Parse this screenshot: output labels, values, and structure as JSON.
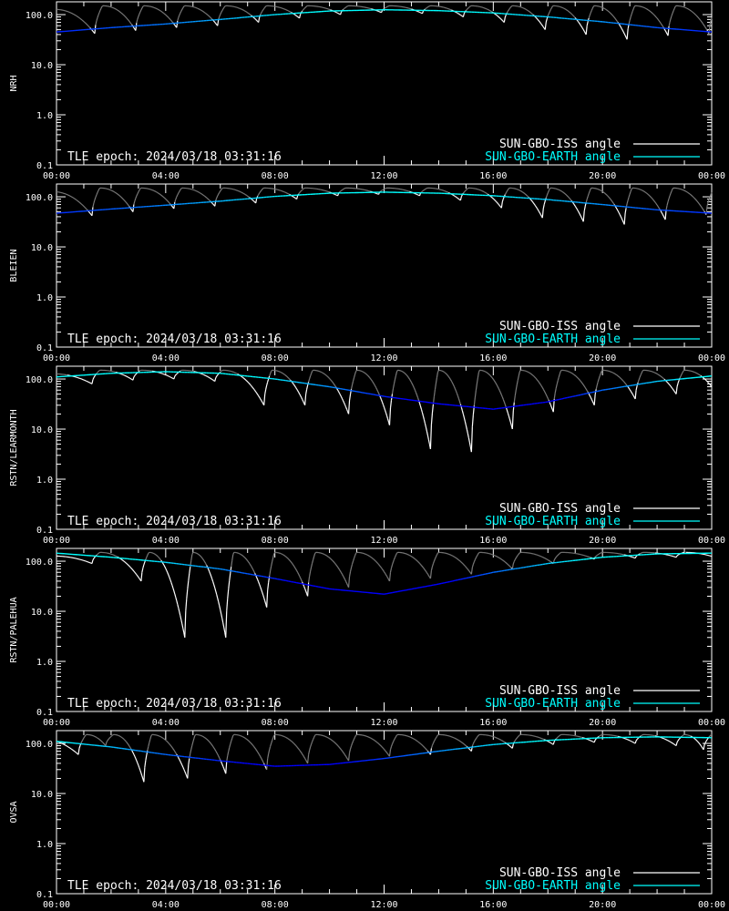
{
  "figure": {
    "colors": {
      "background": "#000000",
      "axes": "#ffffff",
      "sun_gbo_iss": "#ffffff",
      "sun_gbo_iss_faded": "#7a7a7a",
      "sun_gbo_earth_high": "#00ffff",
      "sun_gbo_earth_low": "#0000ff"
    }
  },
  "chart_data": [
    {
      "type": "line",
      "ylabel": "NRH",
      "epoch_note": "TLE epoch: 2024/03/18 03:31:16",
      "x_ticks": [
        "00:00",
        "04:00",
        "08:00",
        "12:00",
        "16:00",
        "20:00",
        "00:00"
      ],
      "y_ticks": [
        "100.0",
        "10.0",
        "1.0",
        "0.1"
      ],
      "y_scale": "log",
      "xlim": [
        0,
        24
      ],
      "ylim": [
        0.1,
        180
      ],
      "legend": [
        "SUN-GBO-ISS angle",
        "SUN-GBO-EARTH angle"
      ],
      "legend_placement": "bottom-right",
      "series": [
        {
          "name": "SUN-GBO-EARTH angle",
          "x": [
            0,
            2,
            4,
            6,
            8,
            10,
            12,
            14,
            16,
            18,
            20,
            22,
            24
          ],
          "values": [
            45,
            55,
            65,
            80,
            100,
            118,
            125,
            120,
            108,
            90,
            72,
            55,
            45
          ]
        },
        {
          "name": "SUN-GBO-ISS angle",
          "dip_times": [
            1.4,
            2.9,
            4.4,
            5.9,
            7.4,
            8.9,
            10.4,
            11.9,
            13.4,
            14.9,
            16.4,
            17.9,
            19.4,
            20.9,
            22.4,
            23.9
          ],
          "dip_minima": [
            42,
            48,
            55,
            60,
            70,
            85,
            100,
            110,
            105,
            90,
            70,
            50,
            40,
            32,
            38,
            42
          ],
          "peak_value": 150
        }
      ]
    },
    {
      "type": "line",
      "ylabel": "BLEIEN",
      "epoch_note": "TLE epoch: 2024/03/18 03:31:16",
      "x_ticks": [
        "00:00",
        "04:00",
        "08:00",
        "12:00",
        "16:00",
        "20:00",
        "00:00"
      ],
      "y_ticks": [
        "100.0",
        "10.0",
        "1.0",
        "0.1"
      ],
      "y_scale": "log",
      "xlim": [
        0,
        24
      ],
      "ylim": [
        0.1,
        180
      ],
      "legend": [
        "SUN-GBO-ISS angle",
        "SUN-GBO-EARTH angle"
      ],
      "legend_placement": "bottom-right",
      "series": [
        {
          "name": "SUN-GBO-EARTH angle",
          "x": [
            0,
            2,
            4,
            6,
            8,
            10,
            12,
            14,
            16,
            18,
            20,
            22,
            24
          ],
          "values": [
            47,
            57,
            68,
            82,
            102,
            118,
            124,
            118,
            105,
            88,
            70,
            55,
            47
          ]
        },
        {
          "name": "SUN-GBO-ISS angle",
          "dip_times": [
            1.3,
            2.8,
            4.3,
            5.8,
            7.3,
            8.8,
            10.3,
            11.8,
            13.3,
            14.8,
            16.3,
            17.8,
            19.3,
            20.8,
            22.3,
            23.8
          ],
          "dip_minima": [
            42,
            50,
            58,
            65,
            75,
            90,
            105,
            112,
            105,
            85,
            60,
            38,
            32,
            28,
            35,
            44
          ],
          "peak_value": 150
        }
      ]
    },
    {
      "type": "line",
      "ylabel": "RSTN/LEARMONTH",
      "epoch_note": "TLE epoch: 2024/03/18 03:31:16",
      "x_ticks": [
        "00:00",
        "04:00",
        "08:00",
        "12:00",
        "16:00",
        "20:00",
        "00:00"
      ],
      "y_ticks": [
        "100.0",
        "10.0",
        "1.0",
        "0.1"
      ],
      "y_scale": "log",
      "xlim": [
        0,
        24
      ],
      "ylim": [
        0.1,
        180
      ],
      "legend": [
        "SUN-GBO-ISS angle",
        "SUN-GBO-EARTH angle"
      ],
      "legend_placement": "bottom-right",
      "series": [
        {
          "name": "SUN-GBO-EARTH angle",
          "x": [
            0,
            2,
            4,
            6,
            8,
            10,
            12,
            14,
            16,
            18,
            20,
            22,
            24
          ],
          "values": [
            110,
            130,
            140,
            130,
            100,
            70,
            45,
            32,
            25,
            35,
            60,
            90,
            115
          ]
        },
        {
          "name": "SUN-GBO-ISS angle",
          "dip_times": [
            1.3,
            2.8,
            4.3,
            5.8,
            7.6,
            9.1,
            10.7,
            12.2,
            13.7,
            15.2,
            16.7,
            18.2,
            19.7,
            21.2,
            22.7,
            24.0
          ],
          "dip_minima": [
            80,
            95,
            100,
            90,
            30,
            30,
            20,
            12,
            4,
            3.5,
            10,
            22,
            30,
            40,
            50,
            70
          ],
          "peak_value": 150
        }
      ]
    },
    {
      "type": "line",
      "ylabel": "RSTN/PALEHUA",
      "epoch_note": "TLE epoch: 2024/03/18 03:31:16",
      "x_ticks": [
        "00:00",
        "04:00",
        "08:00",
        "12:00",
        "16:00",
        "20:00",
        "00:00"
      ],
      "y_ticks": [
        "100.0",
        "10.0",
        "1.0",
        "0.1"
      ],
      "y_scale": "log",
      "xlim": [
        0,
        24
      ],
      "ylim": [
        0.1,
        180
      ],
      "legend": [
        "SUN-GBO-ISS angle",
        "SUN-GBO-EARTH angle"
      ],
      "legend_placement": "bottom-right",
      "series": [
        {
          "name": "SUN-GBO-EARTH angle",
          "x": [
            0,
            2,
            4,
            6,
            8,
            10,
            12,
            14,
            16,
            18,
            20,
            22,
            24
          ],
          "values": [
            145,
            120,
            95,
            70,
            45,
            28,
            22,
            35,
            60,
            90,
            120,
            140,
            145
          ]
        },
        {
          "name": "SUN-GBO-ISS angle",
          "dip_times": [
            1.3,
            3.1,
            4.7,
            6.2,
            7.7,
            9.2,
            10.7,
            12.2,
            13.7,
            15.2,
            16.7,
            18.2,
            19.7,
            21.2,
            22.7,
            24.0
          ],
          "dip_minima": [
            90,
            40,
            3,
            3,
            12,
            20,
            30,
            40,
            45,
            55,
            70,
            90,
            110,
            115,
            120,
            125
          ],
          "peak_value": 150
        }
      ]
    },
    {
      "type": "line",
      "ylabel": "OVSA",
      "epoch_note": "TLE epoch: 2024/03/18 03:31:16",
      "x_ticks": [
        "00:00",
        "04:00",
        "08:00",
        "12:00",
        "16:00",
        "20:00",
        "00:00"
      ],
      "y_ticks": [
        "100.0",
        "10.0",
        "1.0",
        "0.1"
      ],
      "y_scale": "log",
      "xlim": [
        0,
        24
      ],
      "ylim": [
        0.1,
        180
      ],
      "legend": [
        "SUN-GBO-ISS angle",
        "SUN-GBO-EARTH angle"
      ],
      "legend_placement": "bottom-right",
      "series": [
        {
          "name": "SUN-GBO-EARTH angle",
          "x": [
            0,
            2,
            4,
            6,
            8,
            10,
            12,
            14,
            16,
            18,
            20,
            22,
            24
          ],
          "values": [
            110,
            85,
            60,
            45,
            35,
            38,
            50,
            70,
            95,
            115,
            130,
            135,
            130
          ]
        },
        {
          "name": "SUN-GBO-ISS angle",
          "dip_times": [
            0.8,
            1.8,
            3.2,
            4.8,
            6.2,
            7.7,
            9.2,
            10.7,
            12.2,
            13.7,
            15.2,
            16.7,
            18.2,
            19.7,
            21.2,
            22.7,
            23.7
          ],
          "dip_minima": [
            60,
            90,
            17,
            20,
            25,
            30,
            40,
            45,
            55,
            60,
            70,
            80,
            95,
            105,
            100,
            90,
            75
          ],
          "peak_value": 150
        }
      ]
    }
  ]
}
